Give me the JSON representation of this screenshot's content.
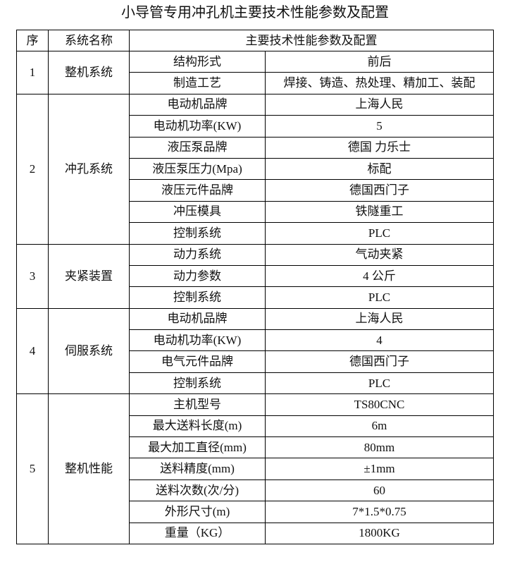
{
  "title": "小导管专用冲孔机主要技术性能参数及配置",
  "headers": {
    "index": "序",
    "system": "系统名称",
    "params": "主要技术性能参数及配置"
  },
  "groups": [
    {
      "index": "1",
      "system": "整机系统",
      "rows": [
        {
          "param": "结构形式",
          "value": "前后"
        },
        {
          "param": "制造工艺",
          "value": "焊接、铸造、热处理、精加工、装配"
        }
      ]
    },
    {
      "index": "2",
      "system": "冲孔系统",
      "rows": [
        {
          "param": "电动机品牌",
          "value": "上海人民"
        },
        {
          "param": "电动机功率(KW)",
          "value": "5"
        },
        {
          "param": "液压泵品牌",
          "value": "德国 力乐士"
        },
        {
          "param": "液压泵压力(Mpa)",
          "value": "标配"
        },
        {
          "param": "液压元件品牌",
          "value": "德国西门子"
        },
        {
          "param": "冲压模具",
          "value": "铁隧重工"
        },
        {
          "param": "控制系统",
          "value": "PLC"
        }
      ]
    },
    {
      "index": "3",
      "system": "夹紧装置",
      "rows": [
        {
          "param": "动力系统",
          "value": "气动夹紧"
        },
        {
          "param": "动力参数",
          "value": "4 公斤"
        },
        {
          "param": "控制系统",
          "value": "PLC"
        }
      ]
    },
    {
      "index": "4",
      "system": "伺服系统",
      "rows": [
        {
          "param": "电动机品牌",
          "value": "上海人民"
        },
        {
          "param": "电动机功率(KW)",
          "value": "4"
        },
        {
          "param": "电气元件品牌",
          "value": "德国西门子"
        },
        {
          "param": "控制系统",
          "value": "PLC"
        }
      ]
    },
    {
      "index": "5",
      "system": "整机性能",
      "rows": [
        {
          "param": "主机型号",
          "value": "TS80CNC"
        },
        {
          "param": "最大送料长度(m)",
          "value": "6m"
        },
        {
          "param": "最大加工直径(mm)",
          "value": "80mm"
        },
        {
          "param": "送料精度(mm)",
          "value": "±1mm"
        },
        {
          "param": "送料次数(次/分)",
          "value": "60"
        },
        {
          "param": "外形尺寸(m)",
          "value": "7*1.5*0.75"
        },
        {
          "param": "重量（KG）",
          "value": "1800KG"
        }
      ]
    }
  ]
}
